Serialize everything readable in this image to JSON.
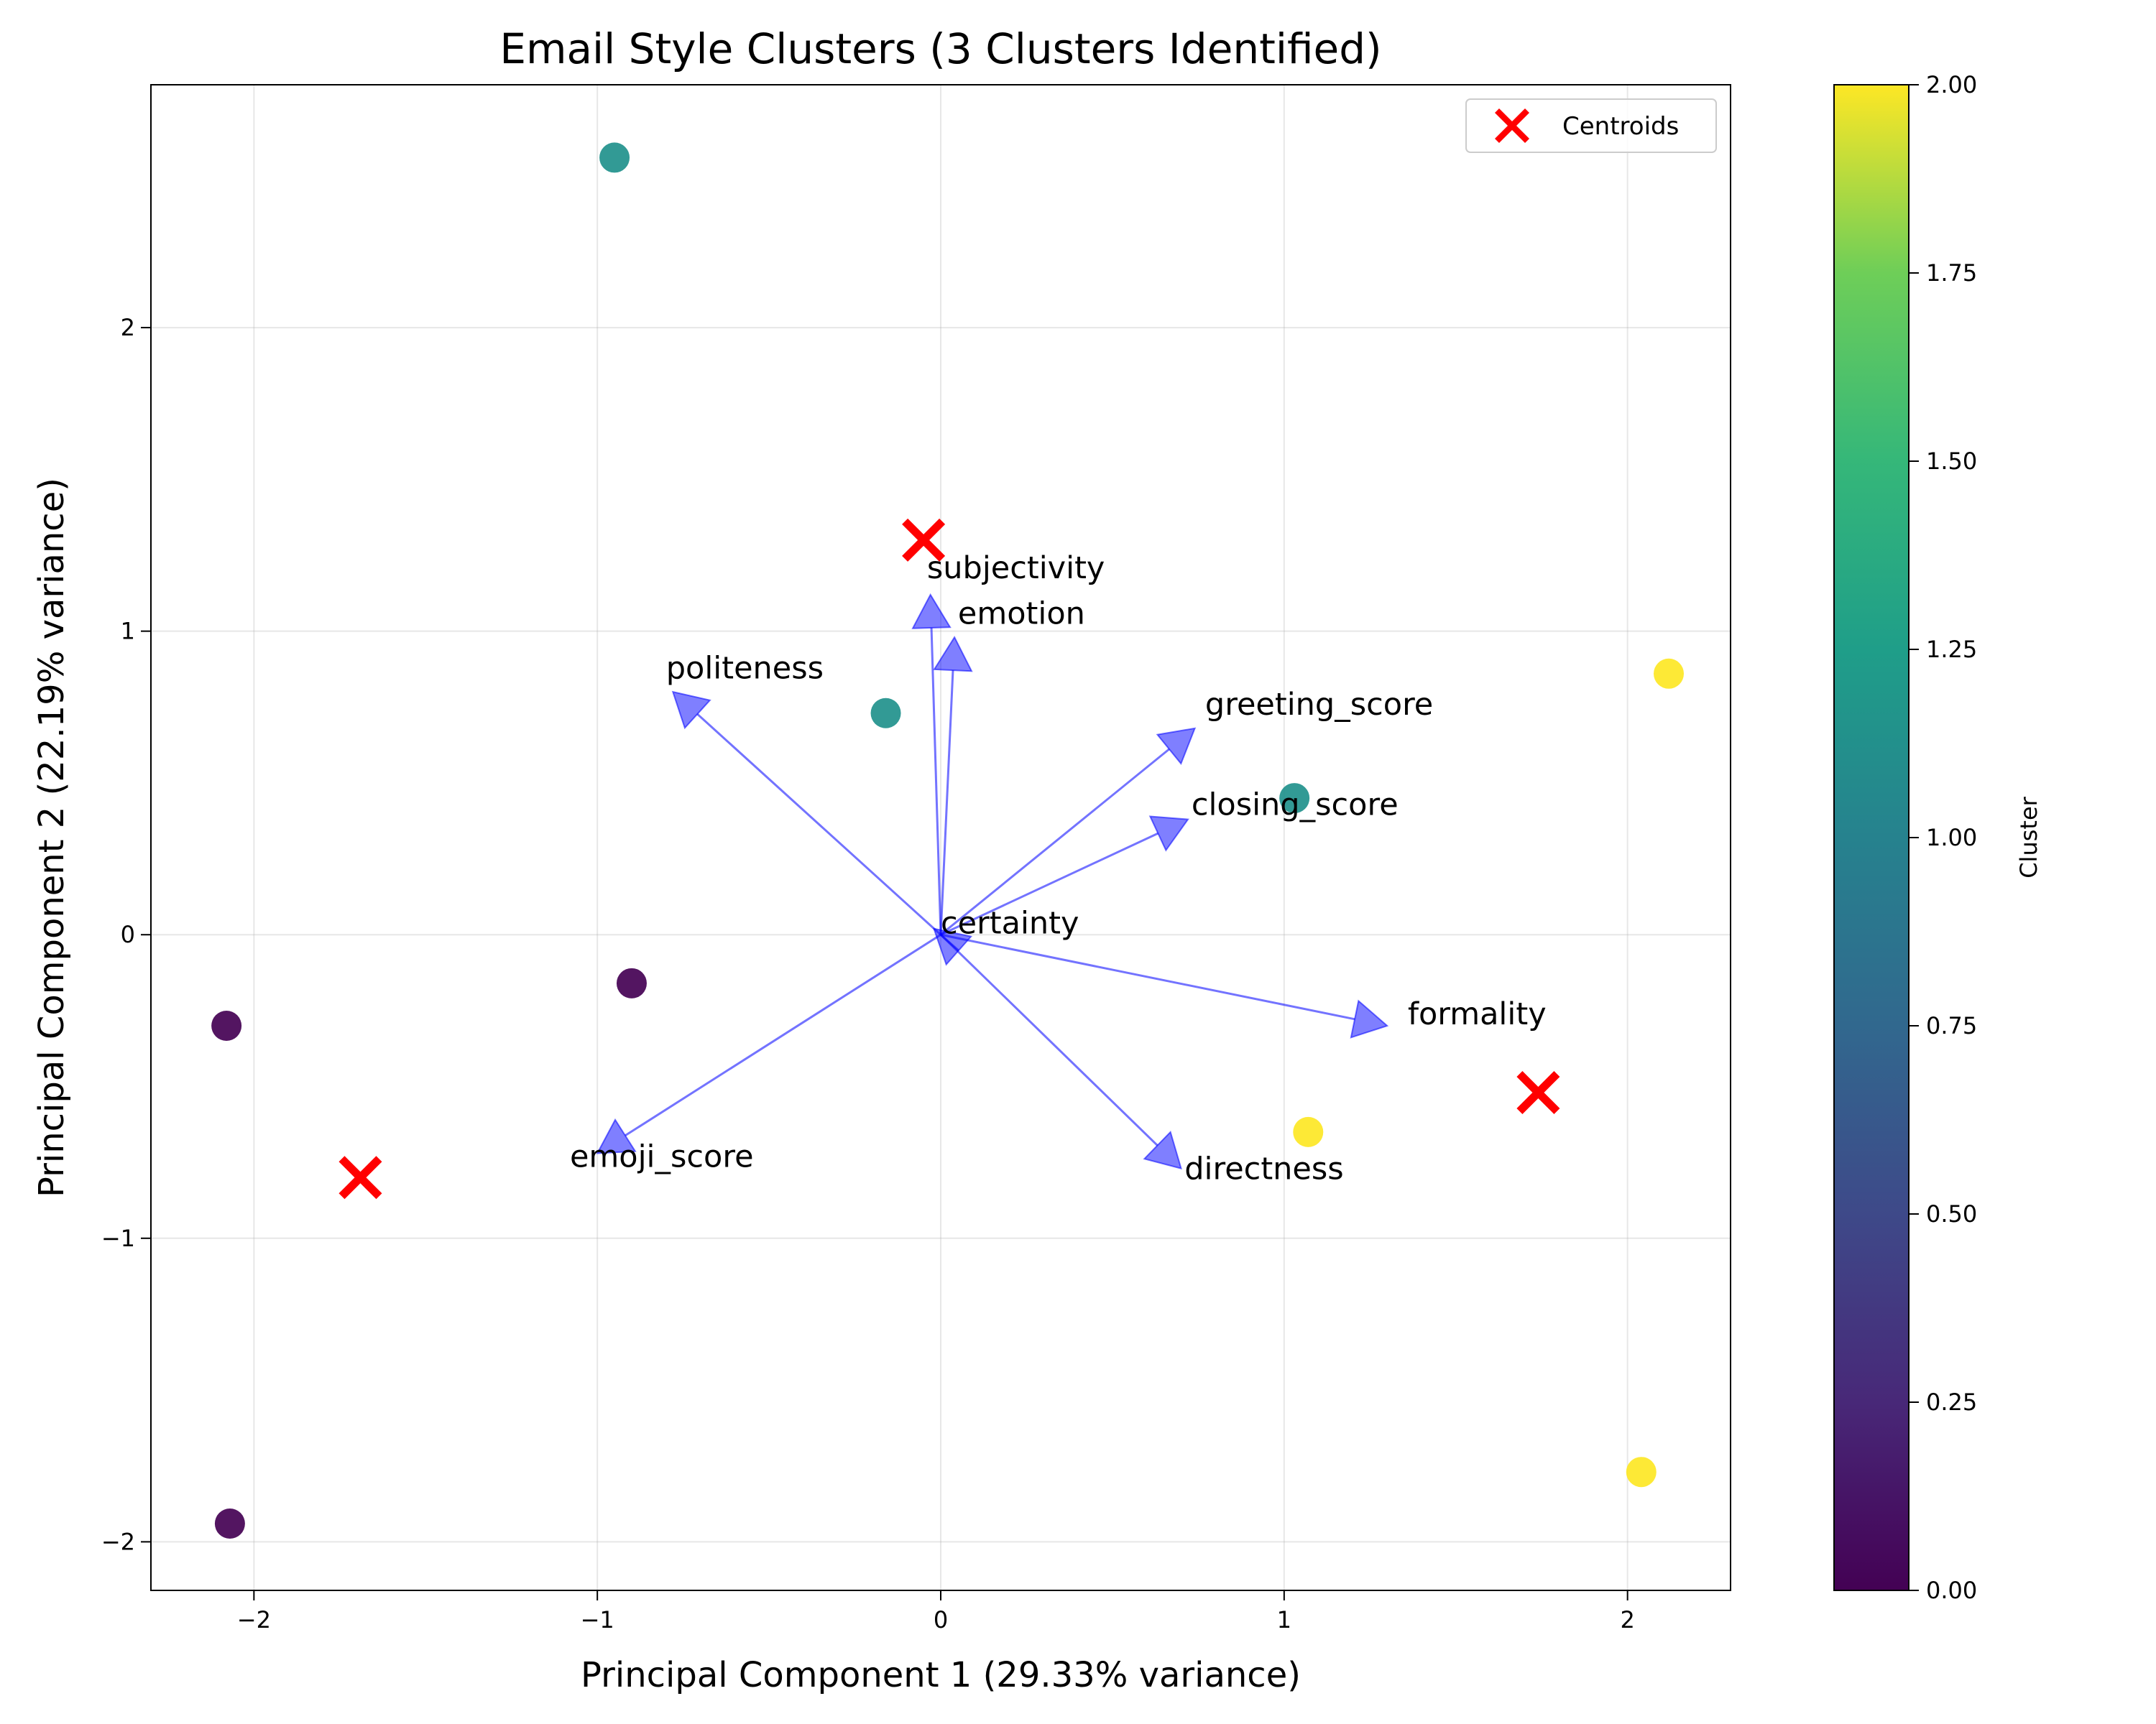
{
  "chart_data": {
    "type": "scatter",
    "title": "Email Style Clusters (3 Clusters Identified)",
    "xlabel": "Principal Component 1 (29.33% variance)",
    "ylabel": "Principal Component 2 (22.19% variance)",
    "xlim": [
      -2.3,
      2.3
    ],
    "ylim": [
      -2.16,
      2.8
    ],
    "xticks": [
      -2,
      -1,
      0,
      1,
      2
    ],
    "yticks": [
      -2,
      -1,
      0,
      1,
      2
    ],
    "grid": true,
    "points": [
      {
        "x": -0.95,
        "y": 2.56,
        "cluster": 1
      },
      {
        "x": -0.16,
        "y": 0.73,
        "cluster": 1
      },
      {
        "x": 1.03,
        "y": 0.45,
        "cluster": 1
      },
      {
        "x": -0.9,
        "y": -0.16,
        "cluster": 0
      },
      {
        "x": -2.08,
        "y": -0.3,
        "cluster": 0
      },
      {
        "x": -2.07,
        "y": -1.94,
        "cluster": 0
      },
      {
        "x": 2.12,
        "y": 0.86,
        "cluster": 2
      },
      {
        "x": 1.07,
        "y": -0.65,
        "cluster": 2
      },
      {
        "x": 2.04,
        "y": -1.77,
        "cluster": 2
      }
    ],
    "centroids": [
      {
        "x": -0.05,
        "y": 1.3
      },
      {
        "x": -1.69,
        "y": -0.8
      },
      {
        "x": 1.74,
        "y": -0.52
      }
    ],
    "legend": {
      "position": "upper-right",
      "entries": [
        "Centroids"
      ]
    },
    "loadings": [
      {
        "name": "subjectivity",
        "x": -0.03,
        "y": 1.12,
        "label_x": -0.04,
        "label_y": 1.21
      },
      {
        "name": "emotion",
        "x": 0.04,
        "y": 0.98,
        "label_x": 0.05,
        "label_y": 1.06
      },
      {
        "name": "politeness",
        "x": -0.78,
        "y": 0.8,
        "label_x": -0.8,
        "label_y": 0.88
      },
      {
        "name": "greeting_score",
        "x": 0.74,
        "y": 0.68,
        "label_x": 0.77,
        "label_y": 0.76
      },
      {
        "name": "closing_score",
        "x": 0.72,
        "y": 0.38,
        "label_x": 0.73,
        "label_y": 0.43
      },
      {
        "name": "certainty",
        "x": -0.02,
        "y": 0.02,
        "label_x": 0.0,
        "label_y": 0.04
      },
      {
        "name": "formality",
        "x": 1.3,
        "y": -0.3,
        "label_x": 1.36,
        "label_y": -0.26
      },
      {
        "name": "directness",
        "x": 0.7,
        "y": -0.77,
        "label_x": 0.71,
        "label_y": -0.77
      },
      {
        "name": "emoji_score",
        "x": -1.0,
        "y": -0.72,
        "label_x": -1.08,
        "label_y": -0.73
      }
    ],
    "colorbar": {
      "label": "Cluster",
      "min": 0.0,
      "max": 2.0,
      "ticks": [
        "0.00",
        "0.25",
        "0.50",
        "0.75",
        "1.00",
        "1.25",
        "1.50",
        "1.75",
        "2.00"
      ]
    },
    "colors": {
      "cluster_0": "#440154",
      "cluster_1": "#21918c",
      "cluster_2": "#fde725",
      "centroid": "#ff0000",
      "arrow": "#0000ff"
    }
  }
}
